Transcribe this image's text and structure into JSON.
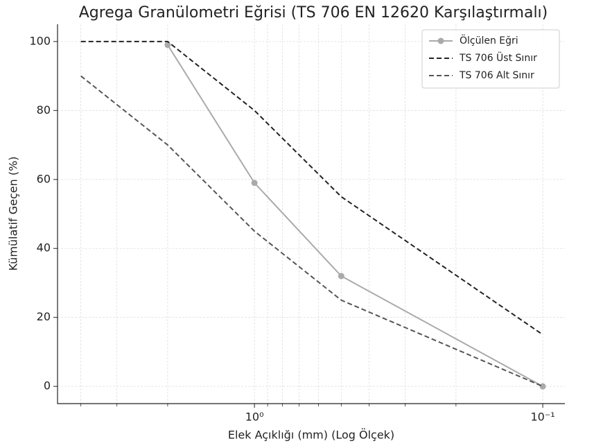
{
  "chart_data": {
    "type": "line",
    "title": "Agrega Granülometri Eğrisi (TS 706 EN 12620 Karşılaştırmalı)",
    "xlabel": "Elek Açıklığı (mm) (Log Ölçek)",
    "ylabel": "Kümülatif Geçen (%)",
    "xscale": "log",
    "xlim": [
      4.82,
      0.0838
    ],
    "ylim": [
      -5,
      105
    ],
    "xticks": [
      {
        "value": 1,
        "label": "10⁰"
      },
      {
        "value": 0.1,
        "label": "10⁻¹"
      }
    ],
    "xminor_ticks": [
      4,
      3,
      2,
      0.9,
      0.8,
      0.7,
      0.6,
      0.5,
      0.4,
      0.3,
      0.2
    ],
    "yticks": [
      0,
      20,
      40,
      60,
      80,
      100
    ],
    "grid": true,
    "legend": "upper right",
    "series": [
      {
        "name": "Ölçülen Eğri",
        "color": "#aaaaaa",
        "dash": "solid",
        "marker": true,
        "x": [
          2,
          1,
          0.5,
          0.1
        ],
        "values": [
          99,
          59,
          32,
          0
        ]
      },
      {
        "name": "TS 706 Üst Sınır",
        "color": "#222222",
        "dash": "dashed",
        "marker": false,
        "x": [
          4,
          2,
          1,
          0.5,
          0.1
        ],
        "values": [
          100,
          100,
          80,
          55,
          15
        ]
      },
      {
        "name": "TS 706 Alt Sınır",
        "color": "#555555",
        "dash": "dashed",
        "marker": false,
        "x": [
          4,
          2,
          1,
          0.5,
          0.1
        ],
        "values": [
          90,
          70,
          45,
          25,
          0
        ]
      }
    ]
  }
}
